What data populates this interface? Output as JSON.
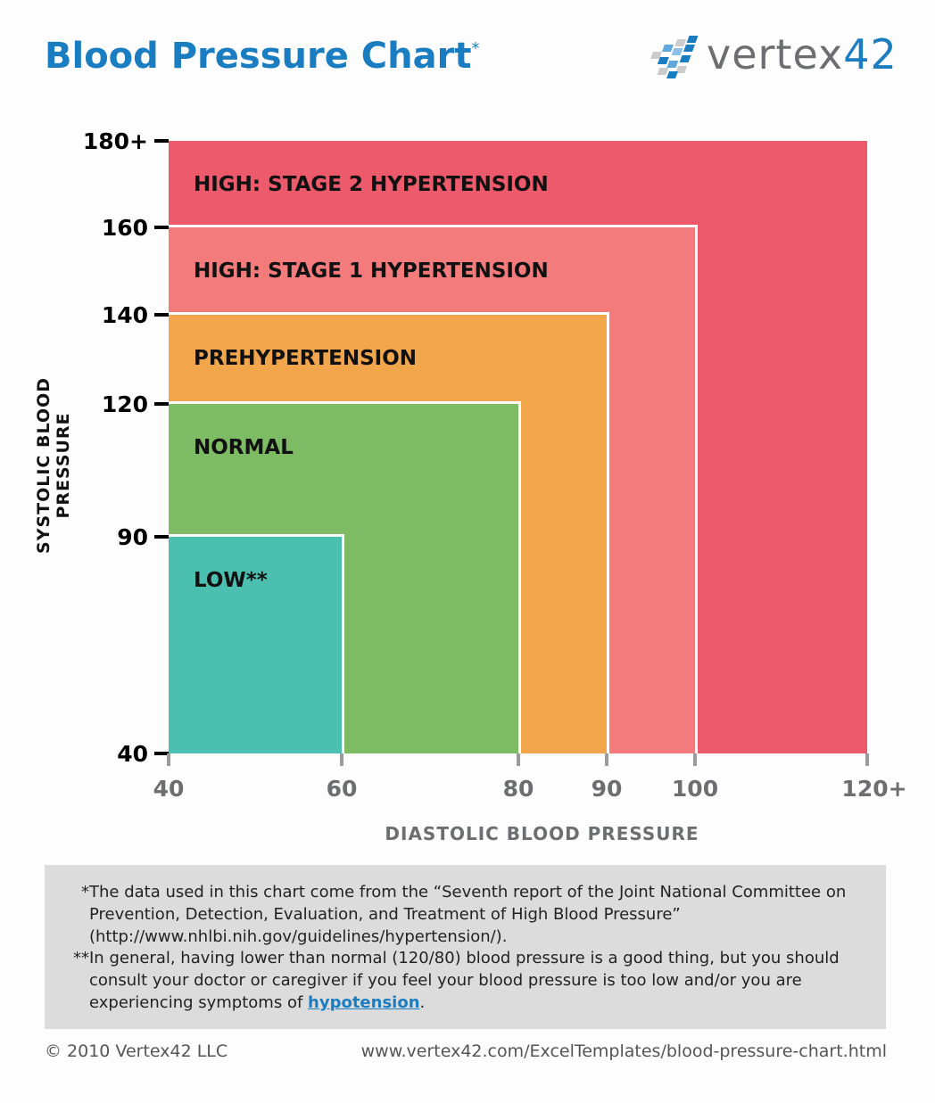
{
  "header": {
    "title": "Blood Pressure Chart",
    "title_mark": "*",
    "logo_text": "vertex",
    "logo_number": "42"
  },
  "chart_data": {
    "type": "area",
    "xlabel": "DIASTOLIC BLOOD PRESSURE",
    "ylabel": "SYSTOLIC BLOOD PRESSURE",
    "x_ticks": [
      "40",
      "60",
      "80",
      "90",
      "100",
      "120+"
    ],
    "y_ticks": [
      "180+",
      "160",
      "140",
      "120",
      "90",
      "40"
    ],
    "x_tick_values": [
      40,
      60,
      80,
      90,
      100,
      120
    ],
    "y_tick_values": [
      180,
      160,
      140,
      120,
      90,
      40
    ],
    "xlim": [
      40,
      120
    ],
    "ylim": [
      40,
      180
    ],
    "regions": [
      {
        "label": "HIGH: STAGE 2 HYPERTENSION",
        "x_max": 120,
        "y_max": 180,
        "color": "#ec5a6b"
      },
      {
        "label": "HIGH: STAGE 1 HYPERTENSION",
        "x_max": 100,
        "y_max": 160,
        "color": "#f47b7b"
      },
      {
        "label": "PREHYPERTENSION",
        "x_max": 90,
        "y_max": 140,
        "color": "#f2a64c"
      },
      {
        "label": "NORMAL",
        "x_max": 80,
        "y_max": 120,
        "color": "#7dbb65"
      },
      {
        "label": "LOW**",
        "x_max": 60,
        "y_max": 90,
        "color": "#4bbfb0"
      }
    ]
  },
  "notes": {
    "n1_mark": "*",
    "n1": "The data used in this chart come from the “Seventh report of the Joint National Committee on Prevention, Detection, Evaluation, and Treatment of High Blood Pressure” (http://www.nhlbi.nih.gov/guidelines/hypertension/).",
    "n2_mark": "**",
    "n2": "In general, having lower than normal (120/80) blood pressure is a good thing, but you should consult your doctor or caregiver if you feel your blood pressure is too low and/or you are experiencing symptoms of ",
    "n2_link": "hypotension",
    "n2_end": "."
  },
  "footer": {
    "copyright": "© 2010 Vertex42 LLC",
    "url": "www.vertex42.com/ExcelTemplates/blood-pressure-chart.html"
  }
}
